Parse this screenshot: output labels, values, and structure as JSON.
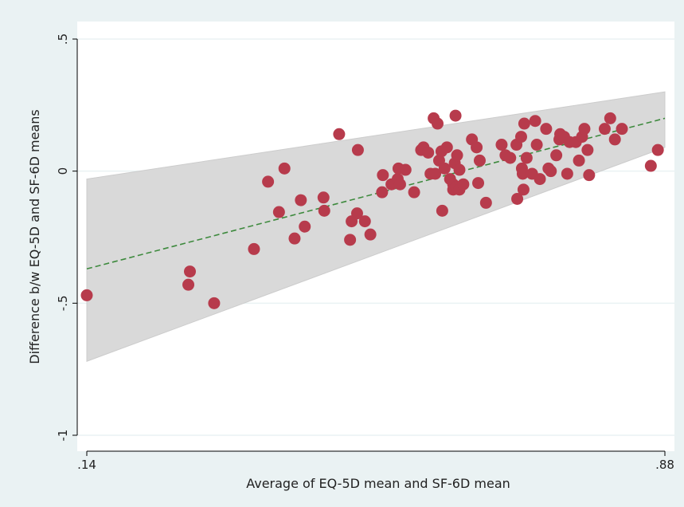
{
  "chart_data": {
    "type": "scatter",
    "title": "",
    "xlabel": "Average of  EQ-5D mean and SF-6D mean",
    "ylabel": "Difference b/w EQ-5D and SF-6D means",
    "xlim": [
      0.14,
      0.88
    ],
    "ylim": [
      -1,
      0.5
    ],
    "x_ticks": [
      {
        "value": 0.14,
        "label": ".14"
      },
      {
        "value": 0.88,
        "label": ".88"
      }
    ],
    "y_ticks": [
      {
        "value": -1,
        "label": "-1"
      },
      {
        "value": -0.5,
        "label": "-.5"
      },
      {
        "value": 0,
        "label": "0"
      },
      {
        "value": 0.5,
        "label": ".5"
      }
    ],
    "grid": true,
    "colors": {
      "page_background": "#eaf2f3",
      "plot_background": "#ffffff",
      "gridline": "#eaf2f3",
      "points": "#b73b4c",
      "regression_line": "#3e8a3e",
      "limits_band": "#d9d9d9"
    },
    "regression_line": {
      "start": [
        0.14,
        -0.37
      ],
      "end": [
        0.88,
        0.2
      ]
    },
    "limits_band": {
      "upper": [
        [
          0.14,
          -0.03
        ],
        [
          0.88,
          0.3
        ]
      ],
      "lower": [
        [
          0.14,
          -0.72
        ],
        [
          0.88,
          0.09
        ]
      ]
    },
    "points": [
      [
        0.14,
        -0.47
      ],
      [
        0.27,
        -0.43
      ],
      [
        0.272,
        -0.38
      ],
      [
        0.303,
        -0.5
      ],
      [
        0.354,
        -0.295
      ],
      [
        0.372,
        -0.04
      ],
      [
        0.386,
        -0.155
      ],
      [
        0.393,
        0.01
      ],
      [
        0.406,
        -0.255
      ],
      [
        0.414,
        -0.11
      ],
      [
        0.419,
        -0.21
      ],
      [
        0.443,
        -0.1
      ],
      [
        0.444,
        -0.15
      ],
      [
        0.463,
        0.14
      ],
      [
        0.477,
        -0.26
      ],
      [
        0.479,
        -0.19
      ],
      [
        0.486,
        -0.16
      ],
      [
        0.487,
        0.08
      ],
      [
        0.496,
        -0.19
      ],
      [
        0.503,
        -0.24
      ],
      [
        0.518,
        -0.08
      ],
      [
        0.519,
        -0.015
      ],
      [
        0.53,
        -0.05
      ],
      [
        0.538,
        -0.03
      ],
      [
        0.539,
        0.01
      ],
      [
        0.541,
        -0.05
      ],
      [
        0.548,
        0.005
      ],
      [
        0.559,
        -0.08
      ],
      [
        0.568,
        0.08
      ],
      [
        0.571,
        0.09
      ],
      [
        0.577,
        0.07
      ],
      [
        0.58,
        -0.01
      ],
      [
        0.584,
        0.2
      ],
      [
        0.586,
        -0.01
      ],
      [
        0.589,
        0.18
      ],
      [
        0.591,
        0.04
      ],
      [
        0.594,
        0.075
      ],
      [
        0.595,
        -0.15
      ],
      [
        0.598,
        0.01
      ],
      [
        0.601,
        0.09
      ],
      [
        0.605,
        -0.03
      ],
      [
        0.609,
        -0.05
      ],
      [
        0.609,
        -0.07
      ],
      [
        0.611,
        0.03
      ],
      [
        0.612,
        0.21
      ],
      [
        0.613,
        -0.06
      ],
      [
        0.614,
        0.06
      ],
      [
        0.617,
        -0.07
      ],
      [
        0.617,
        0.005
      ],
      [
        0.622,
        -0.05
      ],
      [
        0.633,
        0.12
      ],
      [
        0.639,
        0.09
      ],
      [
        0.641,
        -0.045
      ],
      [
        0.643,
        0.04
      ],
      [
        0.651,
        -0.12
      ],
      [
        0.671,
        0.1
      ],
      [
        0.676,
        0.06
      ],
      [
        0.682,
        0.05
      ],
      [
        0.69,
        0.1
      ],
      [
        0.691,
        -0.105
      ],
      [
        0.696,
        0.13
      ],
      [
        0.697,
        0.01
      ],
      [
        0.698,
        -0.01
      ],
      [
        0.699,
        -0.07
      ],
      [
        0.7,
        0.18
      ],
      [
        0.703,
        0.05
      ],
      [
        0.71,
        -0.01
      ],
      [
        0.714,
        0.19
      ],
      [
        0.716,
        0.1
      ],
      [
        0.72,
        -0.03
      ],
      [
        0.728,
        0.16
      ],
      [
        0.731,
        0.01
      ],
      [
        0.734,
        0.0
      ],
      [
        0.741,
        0.06
      ],
      [
        0.745,
        0.12
      ],
      [
        0.746,
        0.14
      ],
      [
        0.751,
        0.13
      ],
      [
        0.755,
        -0.01
      ],
      [
        0.758,
        0.11
      ],
      [
        0.766,
        0.11
      ],
      [
        0.77,
        0.04
      ],
      [
        0.774,
        0.13
      ],
      [
        0.777,
        0.16
      ],
      [
        0.781,
        0.08
      ],
      [
        0.783,
        -0.015
      ],
      [
        0.803,
        0.16
      ],
      [
        0.81,
        0.2
      ],
      [
        0.816,
        0.12
      ],
      [
        0.825,
        0.16
      ],
      [
        0.862,
        0.02
      ],
      [
        0.871,
        0.08
      ]
    ]
  }
}
